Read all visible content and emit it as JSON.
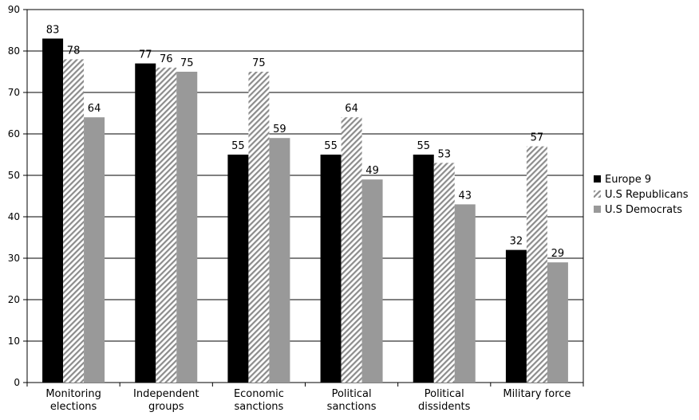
{
  "chart_data": {
    "type": "bar",
    "title": "",
    "xlabel": "",
    "ylabel": "",
    "ylim": [
      0,
      90
    ],
    "yticks": [
      0,
      10,
      20,
      30,
      40,
      50,
      60,
      70,
      80,
      90
    ],
    "grid": true,
    "legend_position": "right",
    "categories": [
      [
        "Monitoring",
        "elections"
      ],
      [
        "Independent",
        "groups"
      ],
      [
        "Economic",
        "sanctions"
      ],
      [
        "Political",
        "sanctions"
      ],
      [
        "Political",
        "dissidents"
      ],
      [
        "Military force"
      ]
    ],
    "series": [
      {
        "name": "Europe 9",
        "values": [
          83,
          77,
          55,
          55,
          55,
          32
        ],
        "color": "#000000",
        "pattern": "solid"
      },
      {
        "name": "U.S Republicans",
        "values": [
          78,
          76,
          75,
          64,
          53,
          57
        ],
        "color": "#8c8c8c",
        "pattern": "diagonal-hatch"
      },
      {
        "name": "U.S Democrats",
        "values": [
          64,
          75,
          59,
          49,
          43,
          29
        ],
        "color": "#999999",
        "pattern": "solid"
      }
    ]
  }
}
